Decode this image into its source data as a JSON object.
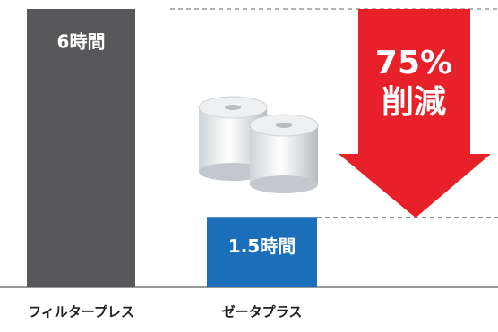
{
  "chart_data": {
    "type": "bar",
    "categories": [
      "フィルタープレス",
      "ゼータプラス"
    ],
    "values": [
      6,
      1.5
    ],
    "value_labels": [
      "6時間",
      "1.5時間"
    ],
    "colors": [
      "#58585a",
      "#1a6fb8"
    ],
    "annotation": [
      "75%",
      "削減"
    ],
    "annotation_color": "#e8202a"
  }
}
